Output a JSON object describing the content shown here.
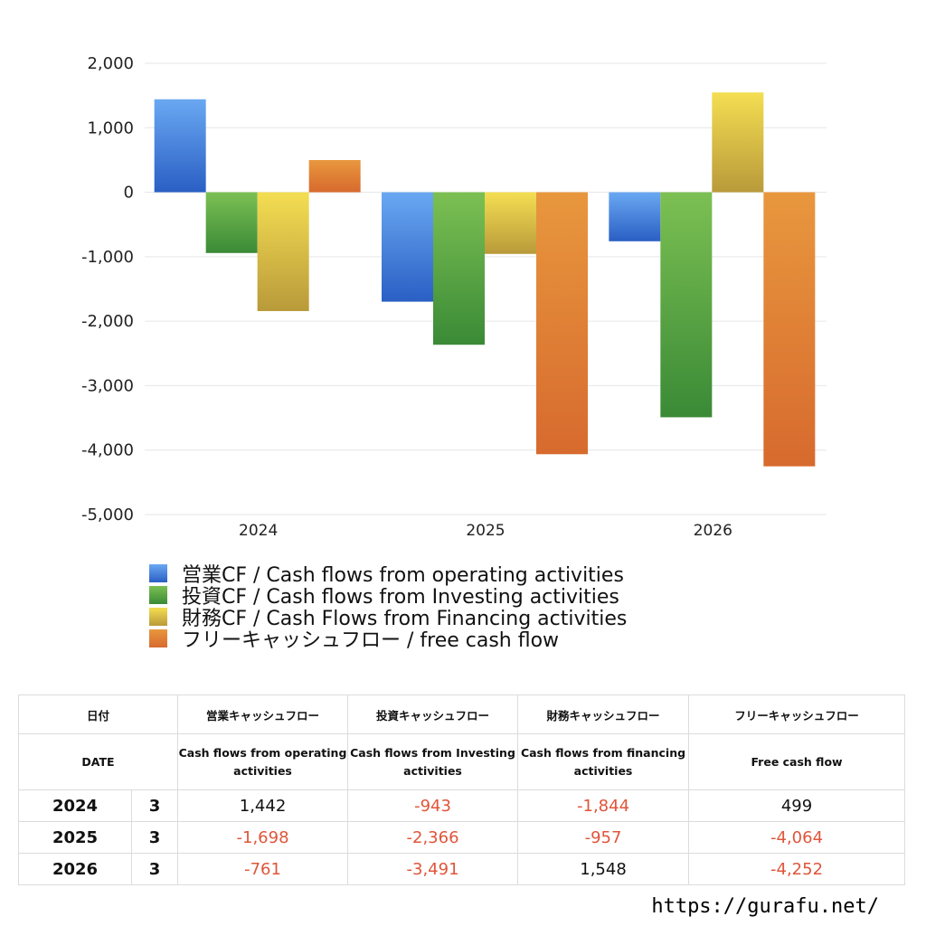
{
  "chart_data": {
    "type": "bar",
    "categories": [
      "2024",
      "2025",
      "2026"
    ],
    "ylim": [
      -5000,
      2000
    ],
    "yticks": [
      2000,
      1000,
      0,
      -1000,
      -2000,
      -3000,
      -4000,
      -5000
    ],
    "ytick_labels": [
      "2,000",
      "1,000",
      "0",
      "-1,000",
      "-2,000",
      "-3,000",
      "-4,000",
      "-5,000"
    ],
    "grid": true,
    "legend_position": "bottom-left",
    "series": [
      {
        "name": "営業CF / Cash flows from operating activities",
        "values": [
          1442,
          -1698,
          -761
        ],
        "color_top": "#6aa8f2",
        "color_bottom": "#2a5fc4"
      },
      {
        "name": "投資CF / Cash flows from Investing activities",
        "values": [
          -943,
          -2366,
          -3491
        ],
        "color_top": "#7cc053",
        "color_bottom": "#3a8a36"
      },
      {
        "name": "財務CF / Cash Flows from Financing activities",
        "values": [
          -1844,
          -957,
          1548
        ],
        "color_top": "#f4de52",
        "color_bottom": "#b99a3a"
      },
      {
        "name": "フリーキャッシュフロー / free cash flow",
        "values": [
          499,
          -4064,
          -4252
        ],
        "color_top": "#e8973e",
        "color_bottom": "#d76a2e"
      }
    ]
  },
  "table": {
    "headers_ja": [
      "日付",
      "営業キャッシュフロー",
      "投資キャッシュフロー",
      "財務キャッシュフロー",
      "フリーキャッシュフロー"
    ],
    "headers_en": [
      "DATE",
      "Cash flows from operating activities",
      "Cash flows from Investing activities",
      "Cash flows from financing activities",
      "Free cash flow"
    ],
    "rows": [
      {
        "year": "2024",
        "month": "3",
        "cells": [
          {
            "text": "1,442",
            "neg": false
          },
          {
            "text": "-943",
            "neg": true
          },
          {
            "text": "-1,844",
            "neg": true
          },
          {
            "text": "499",
            "neg": false
          }
        ]
      },
      {
        "year": "2025",
        "month": "3",
        "cells": [
          {
            "text": "-1,698",
            "neg": true
          },
          {
            "text": "-2,366",
            "neg": true
          },
          {
            "text": "-957",
            "neg": true
          },
          {
            "text": "-4,064",
            "neg": true
          }
        ]
      },
      {
        "year": "2026",
        "month": "3",
        "cells": [
          {
            "text": "-761",
            "neg": true
          },
          {
            "text": "-3,491",
            "neg": true
          },
          {
            "text": "1,548",
            "neg": false
          },
          {
            "text": "-4,252",
            "neg": true
          }
        ]
      }
    ],
    "negative_color": "#e0553a"
  },
  "footer": {
    "url": "https://gurafu.net/"
  }
}
